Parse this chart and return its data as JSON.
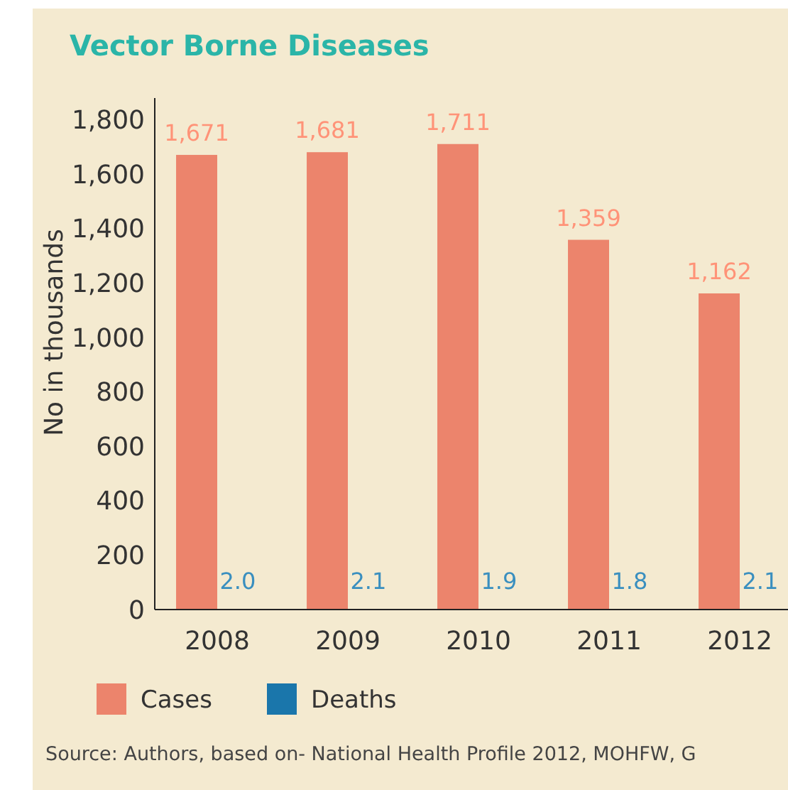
{
  "chart_data": {
    "type": "bar",
    "title": "Vector Borne Diseases",
    "ylabel": "No in thousands",
    "categories": [
      "2008",
      "2009",
      "2010",
      "2011",
      "2012"
    ],
    "series": [
      {
        "name": "Cases",
        "color": "#ec846c",
        "values": [
          1671,
          1681,
          1711,
          1359,
          1162
        ],
        "value_labels": [
          "1,671",
          "1,681",
          "1,711",
          "1,359",
          "1,162"
        ]
      },
      {
        "name": "Deaths",
        "color": "#1a76ab",
        "values": [
          2.0,
          2.1,
          1.9,
          1.8,
          2.1
        ],
        "value_labels": [
          "2.0",
          "2.1",
          "1.9",
          "1.8",
          "2.1"
        ]
      }
    ],
    "ylim": [
      0,
      1880
    ],
    "yticks": [
      {
        "value": 0,
        "label": "0"
      },
      {
        "value": 200,
        "label": "200"
      },
      {
        "value": 400,
        "label": "400"
      },
      {
        "value": 600,
        "label": "600"
      },
      {
        "value": 800,
        "label": "800"
      },
      {
        "value": 1000,
        "label": "1,000"
      },
      {
        "value": 1200,
        "label": "1,200"
      },
      {
        "value": 1400,
        "label": "1,400"
      },
      {
        "value": 1600,
        "label": "1,600"
      },
      {
        "value": 1800,
        "label": "1,800"
      }
    ],
    "grid": false,
    "legend": "bottom left",
    "annotations": [
      "Source: Authors, based on- National Health Profile 2012, MOHFW, G"
    ]
  }
}
